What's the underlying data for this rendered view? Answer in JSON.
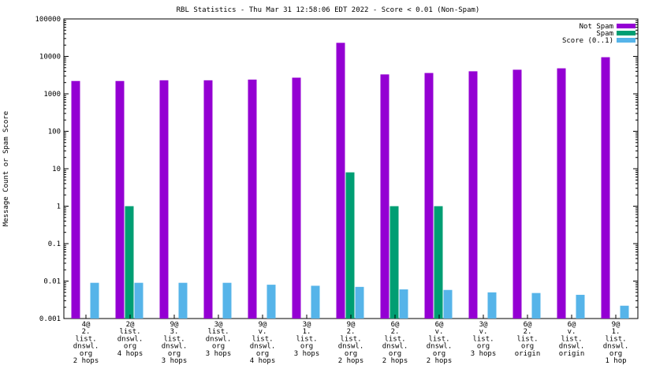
{
  "chart_data": {
    "type": "bar",
    "title": "RBL Statistics - Thu Mar 31 12:58:06 EDT 2022 - Score < 0.01 (Non-Spam)",
    "xlabel": "",
    "ylabel": "Message Count or Spam Score",
    "yscale": "log",
    "ylim": [
      0.001,
      100000
    ],
    "yticks": [
      "0.001",
      "0.01",
      "0.1",
      "1",
      "10",
      "100",
      "1000",
      "10000",
      "100000"
    ],
    "legend_position": "top-right",
    "categories": [
      [
        "4@",
        "2.",
        "list.",
        "dnswl.",
        "org",
        "2 hops"
      ],
      [
        "2@",
        "list.",
        "dnswl.",
        "org",
        "4 hops"
      ],
      [
        "9@",
        "3.",
        "list.",
        "dnswl.",
        "org",
        "3 hops"
      ],
      [
        "3@",
        "list.",
        "dnswl.",
        "org",
        "3 hops"
      ],
      [
        "9@",
        "v.",
        "list.",
        "dnswl.",
        "org",
        "4 hops"
      ],
      [
        "3@",
        "1.",
        "list.",
        "org",
        "3 hops"
      ],
      [
        "9@",
        "2.",
        "list.",
        "dnswl.",
        "org",
        "2 hops"
      ],
      [
        "6@",
        "2.",
        "list.",
        "dnswl.",
        "org",
        "2 hops"
      ],
      [
        "6@",
        "v.",
        "list.",
        "dnswl.",
        "org",
        "2 hops"
      ],
      [
        "3@",
        "v.",
        "list.",
        "org",
        "3 hops"
      ],
      [
        "6@",
        "2.",
        "list.",
        "org",
        "origin"
      ],
      [
        "6@",
        "v.",
        "list.",
        "dnswl.",
        "origin"
      ],
      [
        "9@",
        "1.",
        "list.",
        "dnswl.",
        "org",
        "1 hop"
      ]
    ],
    "series": [
      {
        "name": "Not Spam",
        "color": "#9400d3",
        "values": [
          2200,
          2200,
          2300,
          2300,
          2400,
          2700,
          23000,
          3300,
          3600,
          4000,
          4400,
          4800,
          9500
        ]
      },
      {
        "name": "Spam",
        "color": "#009e73",
        "values": [
          null,
          1,
          null,
          null,
          null,
          null,
          8,
          1,
          1,
          null,
          null,
          null,
          null
        ]
      },
      {
        "name": "Score (0..1)",
        "color": "#56b4e9",
        "values": [
          0.009,
          0.009,
          0.009,
          0.009,
          0.008,
          0.0075,
          0.007,
          0.006,
          0.0058,
          0.005,
          0.0048,
          0.0043,
          0.0022
        ]
      }
    ]
  }
}
